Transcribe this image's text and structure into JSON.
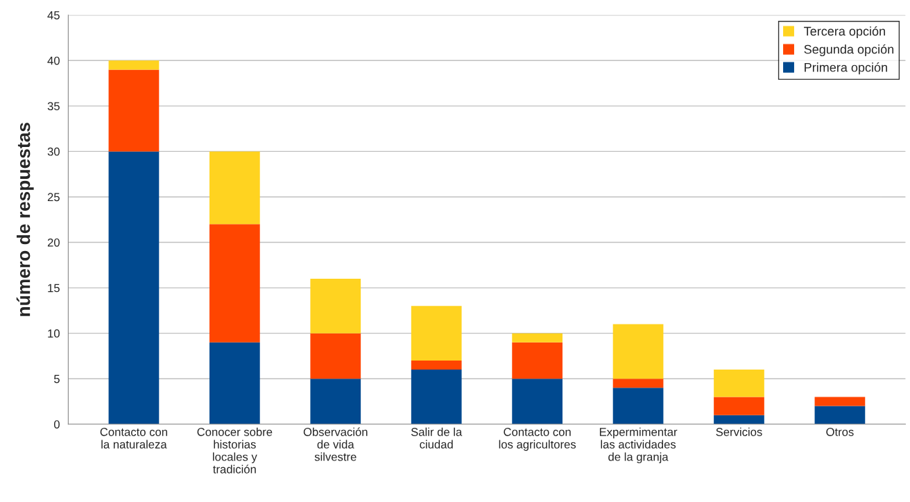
{
  "chart_data": {
    "type": "bar",
    "stacked": true,
    "ylabel": "número de respuestas",
    "categories": [
      "Contacto con\nla naturaleza",
      "Conocer sobre\nhistorias\nlocales y\ntradición",
      "Observación\nde vida\nsilvestre",
      "Salir de la\nciudad",
      "Contacto con\nlos agricultores",
      "Expermimentar\nlas actividades\nde la granja",
      "Servicios",
      "Otros"
    ],
    "series": [
      {
        "name": "Primera opción",
        "color": "#00498f",
        "values": [
          30,
          9,
          5,
          6,
          5,
          4,
          1,
          2
        ]
      },
      {
        "name": "Segunda opción",
        "color": "#ff4500",
        "values": [
          9,
          13,
          5,
          1,
          4,
          1,
          2,
          1
        ]
      },
      {
        "name": "Tercera opción",
        "color": "#ffd320",
        "values": [
          1,
          8,
          6,
          6,
          1,
          6,
          3,
          0
        ]
      }
    ],
    "ylim": [
      0,
      45
    ],
    "yticks": [
      0,
      5,
      10,
      15,
      20,
      25,
      30,
      35,
      40,
      45
    ],
    "grid": "y",
    "legend": "top right"
  }
}
